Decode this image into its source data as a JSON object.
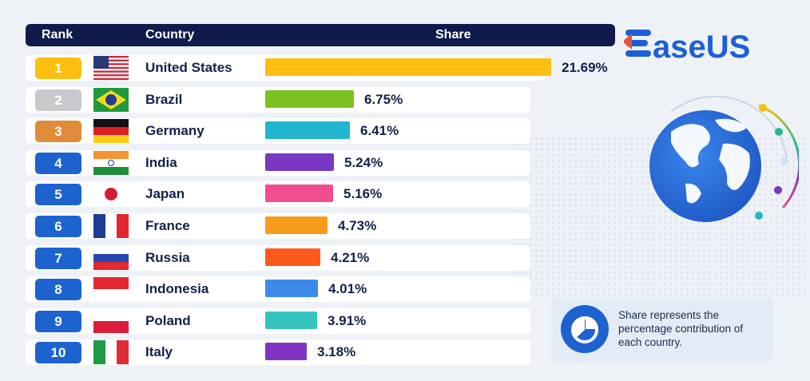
{
  "header": {
    "rank": "Rank",
    "country": "Country",
    "share": "Share"
  },
  "brand": {
    "name": "EaseUS",
    "color": "#1d5fd6"
  },
  "note": "Share represents the percentage contribution of each country.",
  "chart_data": {
    "type": "bar",
    "categories": [
      "United States",
      "Brazil",
      "Germany",
      "India",
      "Japan",
      "France",
      "Russia",
      "Indonesia",
      "Poland",
      "Italy"
    ],
    "ranks": [
      "1",
      "2",
      "3",
      "4",
      "5",
      "6",
      "7",
      "8",
      "9",
      "10"
    ],
    "values": [
      21.69,
      6.75,
      6.41,
      5.24,
      5.16,
      4.73,
      4.21,
      4.01,
      3.91,
      3.18
    ],
    "value_labels": [
      "21.69%",
      "6.75%",
      "6.41%",
      "5.24%",
      "5.16%",
      "4.73%",
      "4.21%",
      "4.01%",
      "3.91%",
      "3.18%"
    ],
    "bar_colors": [
      "#fbbf12",
      "#7dc11f",
      "#22b5cf",
      "#7a37c4",
      "#f24d8f",
      "#f79b1d",
      "#fb5a1d",
      "#3b8ae8",
      "#36c3be",
      "#8132c3"
    ],
    "rank_colors": [
      "#fbbf12",
      "#c7c9cc",
      "#e08b3a",
      "#1d63d0",
      "#1d63d0",
      "#1d63d0",
      "#1d63d0",
      "#1d63d0",
      "#1d63d0",
      "#1d63d0"
    ],
    "flags": [
      "us-flag-icon",
      "brazil-flag-icon",
      "germany-flag-icon",
      "india-flag-icon",
      "japan-flag-icon",
      "france-flag-icon",
      "russia-flag-icon",
      "indonesia-flag-icon",
      "poland-flag-icon",
      "italy-flag-icon"
    ]
  }
}
